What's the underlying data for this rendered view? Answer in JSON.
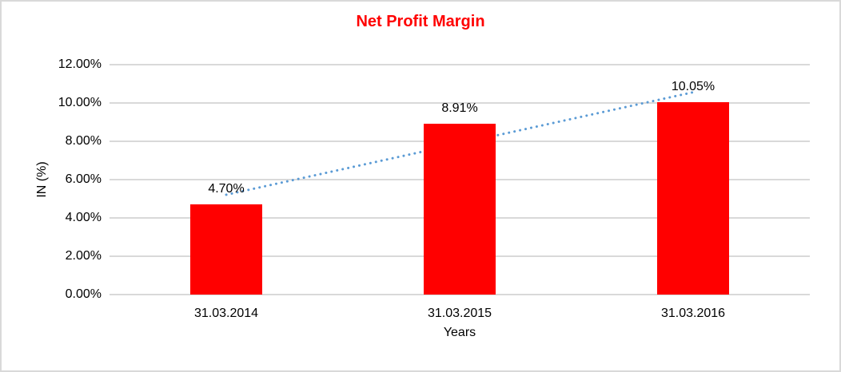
{
  "chart_data": {
    "type": "bar",
    "title": "Net Profit Margin",
    "xlabel": "Years",
    "ylabel": "IN (%)",
    "categories": [
      "31.03.2014",
      "31.03.2015",
      "31.03.2016"
    ],
    "values": [
      4.7,
      8.91,
      10.05
    ],
    "data_labels": [
      "4.70%",
      "8.91%",
      "10.05%"
    ],
    "y_ticks": [
      {
        "value": 12,
        "label": "12.00%"
      },
      {
        "value": 10,
        "label": "10.00%"
      },
      {
        "value": 8,
        "label": "8.00%"
      },
      {
        "value": 6,
        "label": "6.00%"
      },
      {
        "value": 4,
        "label": "4.00%"
      },
      {
        "value": 2,
        "label": "2.00%"
      },
      {
        "value": 0,
        "label": "0.00%"
      }
    ],
    "ylim": [
      0,
      12
    ],
    "grid": true,
    "legend": "none",
    "colors": {
      "bar": "#ff0000",
      "title": "#ff0000",
      "gridline": "#d9d9d9",
      "trendline": "#5b9bd5",
      "text": "#000000"
    },
    "trendline": {
      "type": "linear",
      "style": "dotted",
      "start_value": 5.21,
      "end_value": 10.56
    }
  }
}
